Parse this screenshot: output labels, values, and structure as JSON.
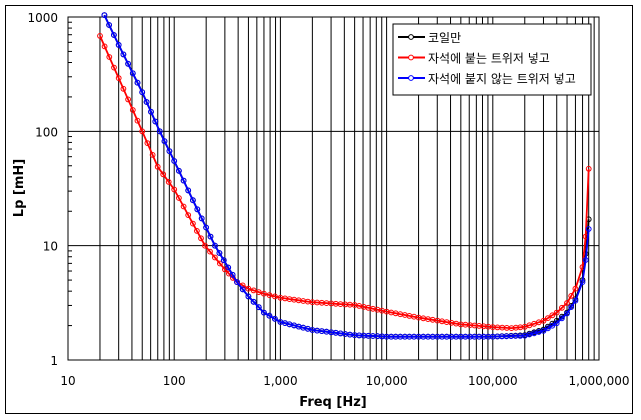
{
  "chart_data": {
    "type": "line",
    "title": "",
    "xlabel": "Freq [Hz]",
    "ylabel": "Lp [mH]",
    "xscale": "log",
    "yscale": "log",
    "xlim": [
      10,
      1000000
    ],
    "ylim": [
      1,
      1000
    ],
    "grid": true,
    "legend_position": "upper right",
    "x_tick_labels": [
      "10",
      "100",
      "1,000",
      "10,000",
      "100,000",
      "1,000,000"
    ],
    "y_tick_labels": [
      "1",
      "10",
      "100",
      "1000"
    ],
    "series": [
      {
        "name": "코일만",
        "color": "#000000",
        "points": [
          [
            22,
            1040
          ],
          [
            30,
            570
          ],
          [
            50,
            220
          ],
          [
            73,
            100
          ],
          [
            100,
            55
          ],
          [
            150,
            25
          ],
          [
            242,
            10
          ],
          [
            390,
            4.8
          ],
          [
            500,
            3.6
          ],
          [
            700,
            2.6
          ],
          [
            1000,
            2.15
          ],
          [
            2000,
            1.83
          ],
          [
            5000,
            1.65
          ],
          [
            10000,
            1.6
          ],
          [
            20000,
            1.6
          ],
          [
            50000,
            1.6
          ],
          [
            100000,
            1.6
          ],
          [
            200000,
            1.65
          ],
          [
            300000,
            1.85
          ],
          [
            400000,
            2.2
          ],
          [
            500000,
            2.6
          ],
          [
            600000,
            3.4
          ],
          [
            700000,
            5.0
          ],
          [
            750000,
            8.5
          ],
          [
            800000,
            17
          ]
        ]
      },
      {
        "name": "자석에 붙는 트위저 넣고",
        "color": "#ff0000",
        "points": [
          [
            20,
            684
          ],
          [
            30,
            292
          ],
          [
            50,
            100
          ],
          [
            70,
            49
          ],
          [
            100,
            31
          ],
          [
            150,
            15.6
          ],
          [
            195,
            10
          ],
          [
            300,
            6.2
          ],
          [
            390,
            4.8
          ],
          [
            500,
            4.2
          ],
          [
            700,
            3.8
          ],
          [
            1000,
            3.5
          ],
          [
            2000,
            3.2
          ],
          [
            5000,
            3.03
          ],
          [
            10000,
            2.65
          ],
          [
            20000,
            2.35
          ],
          [
            50000,
            2.05
          ],
          [
            100000,
            1.94
          ],
          [
            150000,
            1.9
          ],
          [
            200000,
            1.95
          ],
          [
            300000,
            2.2
          ],
          [
            400000,
            2.6
          ],
          [
            500000,
            3.15
          ],
          [
            600000,
            4.2
          ],
          [
            700000,
            6.5
          ],
          [
            750000,
            12
          ],
          [
            800000,
            47
          ]
        ]
      },
      {
        "name": "자석에 붙지 않는 트위저 넣고",
        "color": "#0000ff",
        "points": [
          [
            22,
            1040
          ],
          [
            30,
            570
          ],
          [
            50,
            220
          ],
          [
            73,
            100
          ],
          [
            100,
            55
          ],
          [
            150,
            25
          ],
          [
            242,
            10
          ],
          [
            390,
            4.8
          ],
          [
            500,
            3.6
          ],
          [
            700,
            2.6
          ],
          [
            1000,
            2.15
          ],
          [
            2000,
            1.83
          ],
          [
            5000,
            1.65
          ],
          [
            10000,
            1.6
          ],
          [
            20000,
            1.6
          ],
          [
            50000,
            1.6
          ],
          [
            100000,
            1.6
          ],
          [
            200000,
            1.63
          ],
          [
            300000,
            1.8
          ],
          [
            400000,
            2.1
          ],
          [
            500000,
            2.55
          ],
          [
            600000,
            3.3
          ],
          [
            700000,
            4.8
          ],
          [
            750000,
            7.5
          ],
          [
            800000,
            14
          ]
        ]
      }
    ]
  }
}
